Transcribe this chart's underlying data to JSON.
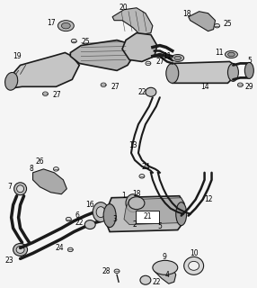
{
  "bg_color": "#f5f5f5",
  "line_color": "#1a1a1a",
  "label_color": "#000000",
  "fig_width": 2.86,
  "fig_height": 3.2,
  "dpi": 100
}
